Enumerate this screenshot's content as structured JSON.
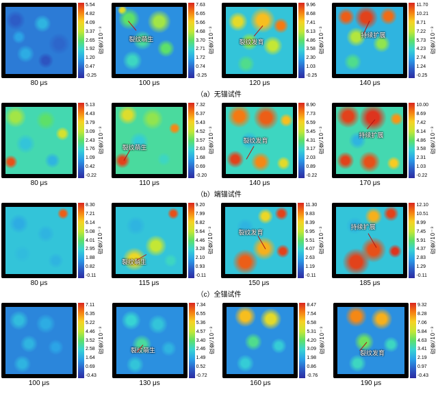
{
  "colorbar_label": "应变/10⁻³",
  "colormap": {
    "stops": [
      {
        "p": 0,
        "c": "#2b2aa0"
      },
      {
        "p": 12,
        "c": "#2d5cc6"
      },
      {
        "p": 25,
        "c": "#2aa0e8"
      },
      {
        "p": 38,
        "c": "#37d4d3"
      },
      {
        "p": 50,
        "c": "#5de069"
      },
      {
        "p": 62,
        "c": "#c4e735"
      },
      {
        "p": 75,
        "c": "#f7d223"
      },
      {
        "p": 88,
        "c": "#f57a12"
      },
      {
        "p": 100,
        "c": "#d92620"
      }
    ]
  },
  "rows": [
    {
      "caption": "（a）无锚试件",
      "panels": [
        {
          "time": "80 μs",
          "ticks": [
            "5.54",
            "4.82",
            "4.09",
            "3.37",
            "2.65",
            "1.92",
            "1.20",
            "0.47",
            "-0.25"
          ],
          "bg": 0.18,
          "blobs": [
            {
              "x": 15,
              "y": 20,
              "r": 20,
              "v": 0.12
            },
            {
              "x": 55,
              "y": 25,
              "r": 18,
              "v": 0.3
            },
            {
              "x": 80,
              "y": 55,
              "r": 22,
              "v": 0.14
            },
            {
              "x": 30,
              "y": 70,
              "r": 18,
              "v": 0.28
            },
            {
              "x": 60,
              "y": 80,
              "r": 16,
              "v": 0.1
            },
            {
              "x": 20,
              "y": 45,
              "r": 14,
              "v": 0.26
            }
          ],
          "annotation": null
        },
        {
          "time": "100 μs",
          "ticks": [
            "7.63",
            "6.65",
            "5.66",
            "4.68",
            "3.70",
            "2.71",
            "1.72",
            "0.74",
            "-0.25"
          ],
          "bg": 0.22,
          "blobs": [
            {
              "x": 20,
              "y": 18,
              "r": 22,
              "v": 0.5
            },
            {
              "x": 65,
              "y": 22,
              "r": 24,
              "v": 0.58
            },
            {
              "x": 40,
              "y": 50,
              "r": 20,
              "v": 0.44
            },
            {
              "x": 75,
              "y": 62,
              "r": 18,
              "v": 0.5
            },
            {
              "x": 25,
              "y": 80,
              "r": 20,
              "v": 0.4
            },
            {
              "x": 10,
              "y": 5,
              "r": 10,
              "v": 0.7
            }
          ],
          "annotation": {
            "text": "裂纹萌生",
            "x": 38,
            "y": 48,
            "line": {
              "x": 30,
              "y": 35,
              "len": 18,
              "ang": 230
            }
          }
        },
        {
          "time": "120 μs",
          "ticks": [
            "9.96",
            "8.68",
            "7.41",
            "6.13",
            "4.86",
            "3.58",
            "2.30",
            "1.03",
            "-0.25"
          ],
          "bg": 0.34,
          "blobs": [
            {
              "x": 18,
              "y": 22,
              "r": 20,
              "v": 0.7
            },
            {
              "x": 55,
              "y": 20,
              "r": 26,
              "v": 0.78
            },
            {
              "x": 82,
              "y": 28,
              "r": 16,
              "v": 0.88
            },
            {
              "x": 35,
              "y": 52,
              "r": 18,
              "v": 0.56
            },
            {
              "x": 70,
              "y": 58,
              "r": 20,
              "v": 0.62
            },
            {
              "x": 30,
              "y": 85,
              "r": 18,
              "v": 0.46
            }
          ],
          "annotation": {
            "text": "裂纹发育",
            "x": 38,
            "y": 52,
            "line": {
              "x": 55,
              "y": 28,
              "len": 20,
              "ang": 130
            }
          }
        },
        {
          "time": "140 μs",
          "ticks": [
            "11.70",
            "10.21",
            "8.71",
            "7.22",
            "5.73",
            "4.23",
            "2.74",
            "1.24",
            "-0.25"
          ],
          "bg": 0.3,
          "blobs": [
            {
              "x": 15,
              "y": 15,
              "r": 18,
              "v": 0.92
            },
            {
              "x": 45,
              "y": 16,
              "r": 24,
              "v": 0.96
            },
            {
              "x": 78,
              "y": 14,
              "r": 18,
              "v": 0.9
            },
            {
              "x": 30,
              "y": 45,
              "r": 20,
              "v": 0.6
            },
            {
              "x": 68,
              "y": 55,
              "r": 18,
              "v": 0.56
            },
            {
              "x": 25,
              "y": 82,
              "r": 18,
              "v": 0.46
            }
          ],
          "annotation": {
            "text": "持续扩展",
            "x": 55,
            "y": 42,
            "line": {
              "x": 50,
              "y": 20,
              "len": 20,
              "ang": 115
            }
          }
        }
      ]
    },
    {
      "caption": "（b）端锚试件",
      "panels": [
        {
          "time": "80 μs",
          "ticks": [
            "5.13",
            "4.43",
            "3.79",
            "3.09",
            "2.43",
            "1.76",
            "1.09",
            "0.42",
            "-0.22"
          ],
          "bg": 0.42,
          "blobs": [
            {
              "x": 15,
              "y": 15,
              "r": 22,
              "v": 0.58
            },
            {
              "x": 60,
              "y": 20,
              "r": 20,
              "v": 0.5
            },
            {
              "x": 85,
              "y": 40,
              "r": 14,
              "v": 0.66
            },
            {
              "x": 30,
              "y": 55,
              "r": 20,
              "v": 0.34
            },
            {
              "x": 8,
              "y": 82,
              "r": 14,
              "v": 0.94
            },
            {
              "x": 70,
              "y": 80,
              "r": 16,
              "v": 0.3
            }
          ],
          "annotation": null
        },
        {
          "time": "110 μs",
          "ticks": [
            "7.32",
            "6.37",
            "5.43",
            "4.52",
            "3.57",
            "2.63",
            "1.68",
            "0.69",
            "-0.20"
          ],
          "bg": 0.44,
          "blobs": [
            {
              "x": 18,
              "y": 12,
              "r": 20,
              "v": 0.68
            },
            {
              "x": 55,
              "y": 18,
              "r": 22,
              "v": 0.56
            },
            {
              "x": 88,
              "y": 32,
              "r": 12,
              "v": 0.86
            },
            {
              "x": 35,
              "y": 52,
              "r": 20,
              "v": 0.36
            },
            {
              "x": 10,
              "y": 80,
              "r": 16,
              "v": 0.96
            },
            {
              "x": 72,
              "y": 78,
              "r": 14,
              "v": 0.4
            }
          ],
          "annotation": {
            "text": "裂纹萌生",
            "x": 28,
            "y": 60,
            "line": {
              "x": 12,
              "y": 80,
              "len": 18,
              "ang": 300
            }
          }
        },
        {
          "time": "140 μs",
          "ticks": [
            "8.90",
            "7.73",
            "6.59",
            "5.45",
            "4.31",
            "3.17",
            "2.03",
            "0.89",
            "-0.22"
          ],
          "bg": 0.4,
          "blobs": [
            {
              "x": 20,
              "y": 14,
              "r": 24,
              "v": 0.88
            },
            {
              "x": 60,
              "y": 16,
              "r": 26,
              "v": 0.92
            },
            {
              "x": 90,
              "y": 20,
              "r": 14,
              "v": 0.78
            },
            {
              "x": 35,
              "y": 50,
              "r": 18,
              "v": 0.32
            },
            {
              "x": 14,
              "y": 78,
              "r": 18,
              "v": 0.96
            },
            {
              "x": 52,
              "y": 82,
              "r": 20,
              "v": 0.86
            },
            {
              "x": 86,
              "y": 84,
              "r": 14,
              "v": 0.7
            }
          ],
          "annotation": {
            "text": "裂纹发育",
            "x": 44,
            "y": 50,
            "line": {
              "x": 30,
              "y": 78,
              "len": 22,
              "ang": 300
            }
          }
        },
        {
          "time": "170 μs",
          "ticks": [
            "10.00",
            "8.69",
            "7.42",
            "6.14",
            "4.86",
            "3.58",
            "2.31",
            "1.03",
            "-0.22"
          ],
          "bg": 0.42,
          "blobs": [
            {
              "x": 18,
              "y": 14,
              "r": 24,
              "v": 0.96
            },
            {
              "x": 55,
              "y": 16,
              "r": 28,
              "v": 0.98
            },
            {
              "x": 90,
              "y": 18,
              "r": 14,
              "v": 0.84
            },
            {
              "x": 32,
              "y": 50,
              "r": 18,
              "v": 0.3
            },
            {
              "x": 14,
              "y": 80,
              "r": 18,
              "v": 0.96
            },
            {
              "x": 50,
              "y": 82,
              "r": 22,
              "v": 0.94
            },
            {
              "x": 86,
              "y": 84,
              "r": 14,
              "v": 0.76
            }
          ],
          "annotation": {
            "text": "持续扩展",
            "x": 52,
            "y": 42,
            "line": {
              "x": 58,
              "y": 18,
              "len": 18,
              "ang": 130
            }
          }
        }
      ]
    },
    {
      "caption": "（c）全锚试件",
      "panels": [
        {
          "time": "80 μs",
          "ticks": [
            "8.30",
            "7.21",
            "6.14",
            "5.08",
            "4.01",
            "2.95",
            "1.88",
            "0.82",
            "-0.11"
          ],
          "bg": 0.34,
          "blobs": [
            {
              "x": 86,
              "y": 10,
              "r": 12,
              "v": 0.92
            },
            {
              "x": 20,
              "y": 25,
              "r": 20,
              "v": 0.28
            },
            {
              "x": 60,
              "y": 40,
              "r": 18,
              "v": 0.3
            },
            {
              "x": 25,
              "y": 70,
              "r": 18,
              "v": 0.32
            },
            {
              "x": 75,
              "y": 80,
              "r": 16,
              "v": 0.3
            }
          ],
          "annotation": null
        },
        {
          "time": "115 μs",
          "ticks": [
            "9.20",
            "7.99",
            "6.82",
            "5.64",
            "4.46",
            "3.28",
            "2.10",
            "0.93",
            "-0.11"
          ],
          "bg": 0.34,
          "blobs": [
            {
              "x": 86,
              "y": 10,
              "r": 12,
              "v": 0.94
            },
            {
              "x": 30,
              "y": 28,
              "r": 20,
              "v": 0.3
            },
            {
              "x": 60,
              "y": 58,
              "r": 22,
              "v": 0.62
            },
            {
              "x": 28,
              "y": 78,
              "r": 24,
              "v": 0.72
            },
            {
              "x": 82,
              "y": 80,
              "r": 14,
              "v": 0.4
            }
          ],
          "annotation": {
            "text": "裂纹萌生",
            "x": 28,
            "y": 82,
            "line": {
              "x": 46,
              "y": 70,
              "len": 16,
              "ang": 150
            }
          }
        },
        {
          "time": "150 μs",
          "ticks": [
            "11.30",
            "9.83",
            "8.39",
            "6.95",
            "5.51",
            "4.07",
            "2.63",
            "1.19",
            "-0.11"
          ],
          "bg": 0.34,
          "blobs": [
            {
              "x": 84,
              "y": 10,
              "r": 14,
              "v": 0.96
            },
            {
              "x": 60,
              "y": 14,
              "r": 16,
              "v": 0.72
            },
            {
              "x": 30,
              "y": 30,
              "r": 18,
              "v": 0.3
            },
            {
              "x": 58,
              "y": 62,
              "r": 24,
              "v": 0.8
            },
            {
              "x": 30,
              "y": 82,
              "r": 26,
              "v": 0.92
            },
            {
              "x": 86,
              "y": 66,
              "r": 14,
              "v": 0.96
            }
          ],
          "annotation": {
            "text": "裂纹发育",
            "x": 38,
            "y": 38,
            "line": {
              "x": 60,
              "y": 62,
              "len": 22,
              "ang": 240
            }
          }
        },
        {
          "time": "185 μs",
          "ticks": [
            "12.10",
            "10.51",
            "8.99",
            "7.45",
            "5.91",
            "4.37",
            "2.83",
            "1.29",
            "-0.11"
          ],
          "bg": 0.34,
          "blobs": [
            {
              "x": 82,
              "y": 10,
              "r": 16,
              "v": 0.96
            },
            {
              "x": 56,
              "y": 14,
              "r": 18,
              "v": 0.8
            },
            {
              "x": 28,
              "y": 28,
              "r": 18,
              "v": 0.3
            },
            {
              "x": 56,
              "y": 64,
              "r": 26,
              "v": 0.94
            },
            {
              "x": 30,
              "y": 82,
              "r": 28,
              "v": 0.96
            },
            {
              "x": 88,
              "y": 66,
              "r": 14,
              "v": 0.98
            }
          ],
          "annotation": {
            "text": "持续扩展",
            "x": 40,
            "y": 30,
            "line": {
              "x": 60,
              "y": 60,
              "len": 24,
              "ang": 240
            }
          }
        }
      ]
    },
    {
      "caption": "",
      "panels": [
        {
          "time": "100 μs",
          "ticks": [
            "7.11",
            "6.35",
            "5.22",
            "4.46",
            "3.52",
            "2.58",
            "1.64",
            "0.69",
            "-0.43"
          ],
          "bg": 0.2,
          "blobs": [
            {
              "x": 20,
              "y": 20,
              "r": 20,
              "v": 0.32
            },
            {
              "x": 60,
              "y": 25,
              "r": 20,
              "v": 0.28
            },
            {
              "x": 35,
              "y": 55,
              "r": 18,
              "v": 0.3
            },
            {
              "x": 75,
              "y": 60,
              "r": 16,
              "v": 0.26
            },
            {
              "x": 25,
              "y": 85,
              "r": 18,
              "v": 0.3
            }
          ],
          "annotation": null
        },
        {
          "time": "130 μs",
          "ticks": [
            "7.34",
            "6.55",
            "5.36",
            "4.57",
            "3.40",
            "2.46",
            "1.49",
            "0.52",
            "-0.72"
          ],
          "bg": 0.22,
          "blobs": [
            {
              "x": 22,
              "y": 20,
              "r": 20,
              "v": 0.38
            },
            {
              "x": 62,
              "y": 26,
              "r": 20,
              "v": 0.34
            },
            {
              "x": 38,
              "y": 56,
              "r": 20,
              "v": 0.44
            },
            {
              "x": 78,
              "y": 62,
              "r": 16,
              "v": 0.3
            },
            {
              "x": 28,
              "y": 86,
              "r": 18,
              "v": 0.34
            }
          ],
          "annotation": {
            "text": "裂纹萌生",
            "x": 40,
            "y": 64,
            "line": {
              "x": 40,
              "y": 56,
              "len": 14,
              "ang": 130
            }
          }
        },
        {
          "time": "160 μs",
          "ticks": [
            "8.47",
            "7.54",
            "6.58",
            "5.31",
            "4.20",
            "3.09",
            "1.98",
            "0.86",
            "-0.76"
          ],
          "bg": 0.22,
          "blobs": [
            {
              "x": 28,
              "y": 14,
              "r": 22,
              "v": 0.78
            },
            {
              "x": 66,
              "y": 18,
              "r": 22,
              "v": 0.7
            },
            {
              "x": 40,
              "y": 52,
              "r": 18,
              "v": 0.46
            },
            {
              "x": 78,
              "y": 58,
              "r": 16,
              "v": 0.36
            },
            {
              "x": 28,
              "y": 84,
              "r": 18,
              "v": 0.36
            }
          ],
          "annotation": null
        },
        {
          "time": "190 μs",
          "ticks": [
            "9.32",
            "8.28",
            "7.06",
            "5.84",
            "4.63",
            "3.41",
            "2.19",
            "0.97",
            "-0.43"
          ],
          "bg": 0.22,
          "blobs": [
            {
              "x": 28,
              "y": 14,
              "r": 22,
              "v": 0.86
            },
            {
              "x": 66,
              "y": 18,
              "r": 22,
              "v": 0.8
            },
            {
              "x": 40,
              "y": 52,
              "r": 20,
              "v": 0.52
            },
            {
              "x": 80,
              "y": 56,
              "r": 16,
              "v": 0.4
            },
            {
              "x": 30,
              "y": 84,
              "r": 18,
              "v": 0.4
            }
          ],
          "annotation": {
            "text": "裂纹发育",
            "x": 52,
            "y": 68,
            "line": {
              "x": 44,
              "y": 52,
              "len": 16,
              "ang": 130
            }
          }
        }
      ]
    }
  ]
}
